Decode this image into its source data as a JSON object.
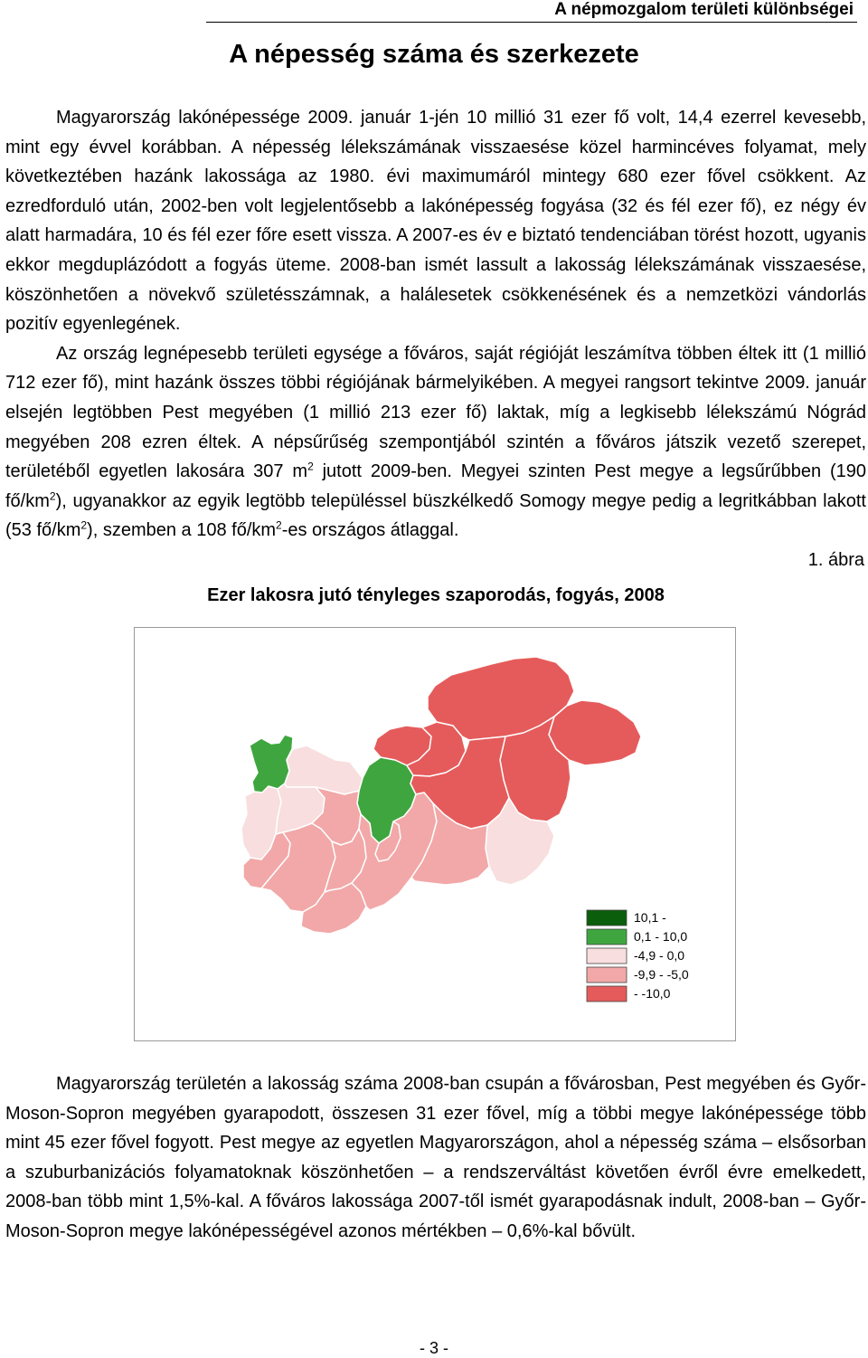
{
  "header": {
    "running_title": "A népmozgalom területi különbségei",
    "page_title": "A népesség száma és szerkezete"
  },
  "intro": {
    "p1_a": "Magyarország lakónépessége 2009. január 1-jén 10 millió 31 ezer fő volt, 14,4 ezerrel keve­sebb, mint egy évvel korábban. A népesség lélekszámának visszaesése közel harmincéves folya­mat, mely következtében hazánk lakossága az 1980. évi maximumáról mintegy 680 ezer fővel csökkent. Az ezredforduló után, 2002-ben volt legjelentősebb a lakónépesség fogyása (32 és fél ezer fő), ez négy év alatt harmadára, 10 és fél ezer főre esett vissza. A 2007-es év e biztató ten­denciában törést hozott, ugyanis ekkor megduplázódott a fogyás üteme. 2008-ban ismét lassult a lakosság lélekszámának visszaesése, köszönhetően a növekvő születésszámnak, a halálesetek csökkenésének és a nemzetközi vándorlás pozitív egyenlegének.",
    "p2_a": "Az ország legnépesebb területi egysége a főváros, saját régióját leszámítva többen éltek itt (1 millió 712 ezer fő), mint hazánk összes többi régiójának bármelyikében. A megyei rangsort te­kintve 2009. január elsején legtöbben Pest megyében (1 millió 213 ezer fő) laktak, míg a legkisebb lélekszámú Nógrád megyében 208 ezren éltek. A népsűrűség szempontjából szintén a főváros játszik vezető szerepet, területéből egyetlen lakosára 307 m",
    "p2_sup1": "2",
    "p2_b": " jutott 2009-ben. Megyei szinten Pest megye a legsűrűbben (190 fő/km",
    "p2_sup2": "2",
    "p2_c": "), ugyanakkor az egyik legtöbb településsel büszkélkedő So­mogy megye pedig a legritkábban lakott (53 fő/km",
    "p2_sup3": "2",
    "p2_d": "), szemben a 108 fő/km",
    "p2_sup4": "2",
    "p2_e": "-es országos átlaggal."
  },
  "figure": {
    "number": "1. ábra",
    "title": "Ezer lakosra jutó tényleges szaporodás, fogyás, 2008"
  },
  "chart_data": {
    "type": "choropleth",
    "title": "Ezer lakosra jutó tényleges szaporodás, fogyás, 2008",
    "legend": [
      {
        "label": "10,1 -",
        "color": "#0b5e0b"
      },
      {
        "label": "0,1 - 10,0",
        "color": "#3fa63f"
      },
      {
        "label": "-4,9 - 0,0",
        "color": "#f8dede"
      },
      {
        "label": "-9,9 - -5,0",
        "color": "#f2a8a8"
      },
      {
        "label": "- -10,0",
        "color": "#e55b5b"
      }
    ],
    "regions": [
      {
        "class": 0
      },
      {
        "class": 1
      },
      {
        "class": 1
      },
      {
        "class": 2
      },
      {
        "class": 2
      },
      {
        "class": 2
      },
      {
        "class": 3
      },
      {
        "class": 3
      },
      {
        "class": 3
      },
      {
        "class": 3
      },
      {
        "class": 3
      },
      {
        "class": 4
      },
      {
        "class": 4
      },
      {
        "class": 4
      },
      {
        "class": 4
      },
      {
        "class": 4
      },
      {
        "class": 4
      },
      {
        "class": 2
      },
      {
        "class": 3
      },
      {
        "class": 3
      },
      {
        "class": 3
      }
    ],
    "legend_position": "bottom-right"
  },
  "outro": {
    "p1": "Magyarország területén a lakosság száma 2008-ban csupán a fővárosban, Pest megyében és Győr-Moson-Sopron megyében gyarapodott, összesen 31 ezer fővel, míg a többi megye lakó­népessége több mint 45 ezer fővel fogyott. Pest megye az egyetlen Magyarországon, ahol a né­pesség száma – elsősorban a szuburbanizációs folyamatoknak köszönhetően – a rendszerváltást követően évről évre emelkedett, 2008-ban több mint 1,5%-kal. A főváros lakossága 2007-től ismét gyarapodásnak indult, 2008-ban – Győr-Moson-Sopron megye lakónépességével azonos mérték­ben – 0,6%-kal bővült."
  },
  "footer": {
    "page_number": "- 3 -"
  }
}
